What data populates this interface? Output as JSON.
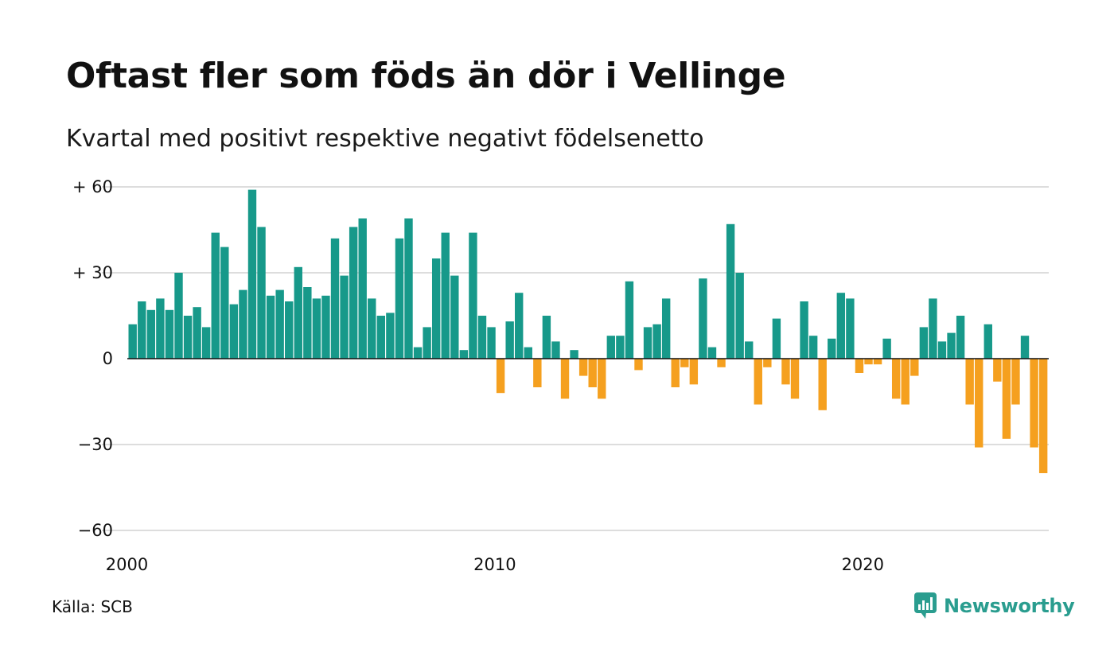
{
  "header": {
    "title": "Oftast fler som föds än dör i Vellinge",
    "subtitle": "Kvartal med positivt respektive negativt födelsenetto"
  },
  "footer": {
    "source": "Källa: SCB",
    "logo_text": "Newsworthy",
    "logo_icon": "bar-chart-speech-bubble-icon"
  },
  "colors": {
    "positive": "#17998a",
    "negative": "#f5a01f",
    "grid": "#dddddd",
    "zero_line": "#111111",
    "brand": "#2a9d8f"
  },
  "chart_data": {
    "type": "bar",
    "x_start": "2000 Q1",
    "x_ticks": [
      "2000",
      "2010",
      "2020"
    ],
    "y_ticks": [
      "+ 60",
      "+ 30",
      "0",
      "−30",
      "−60"
    ],
    "ylim": [
      -60,
      60
    ],
    "grid": true,
    "values": [
      12,
      20,
      17,
      21,
      17,
      30,
      15,
      18,
      11,
      44,
      39,
      19,
      24,
      59,
      46,
      22,
      24,
      20,
      32,
      25,
      21,
      22,
      42,
      29,
      46,
      49,
      21,
      15,
      16,
      42,
      49,
      4,
      11,
      35,
      44,
      29,
      3,
      44,
      15,
      11,
      -12,
      13,
      23,
      4,
      -10,
      15,
      6,
      -14,
      3,
      -6,
      -10,
      -14,
      8,
      8,
      27,
      -4,
      11,
      12,
      21,
      -10,
      -3,
      -9,
      28,
      4,
      -3,
      47,
      30,
      6,
      -16,
      -3,
      14,
      -9,
      -14,
      20,
      8,
      -18,
      7,
      23,
      21,
      -5,
      -2,
      -2,
      7,
      -14,
      -16,
      -6,
      11,
      21,
      6,
      9,
      15,
      -16,
      -31,
      12,
      -8,
      -28,
      -16,
      8,
      -31,
      -40
    ]
  }
}
